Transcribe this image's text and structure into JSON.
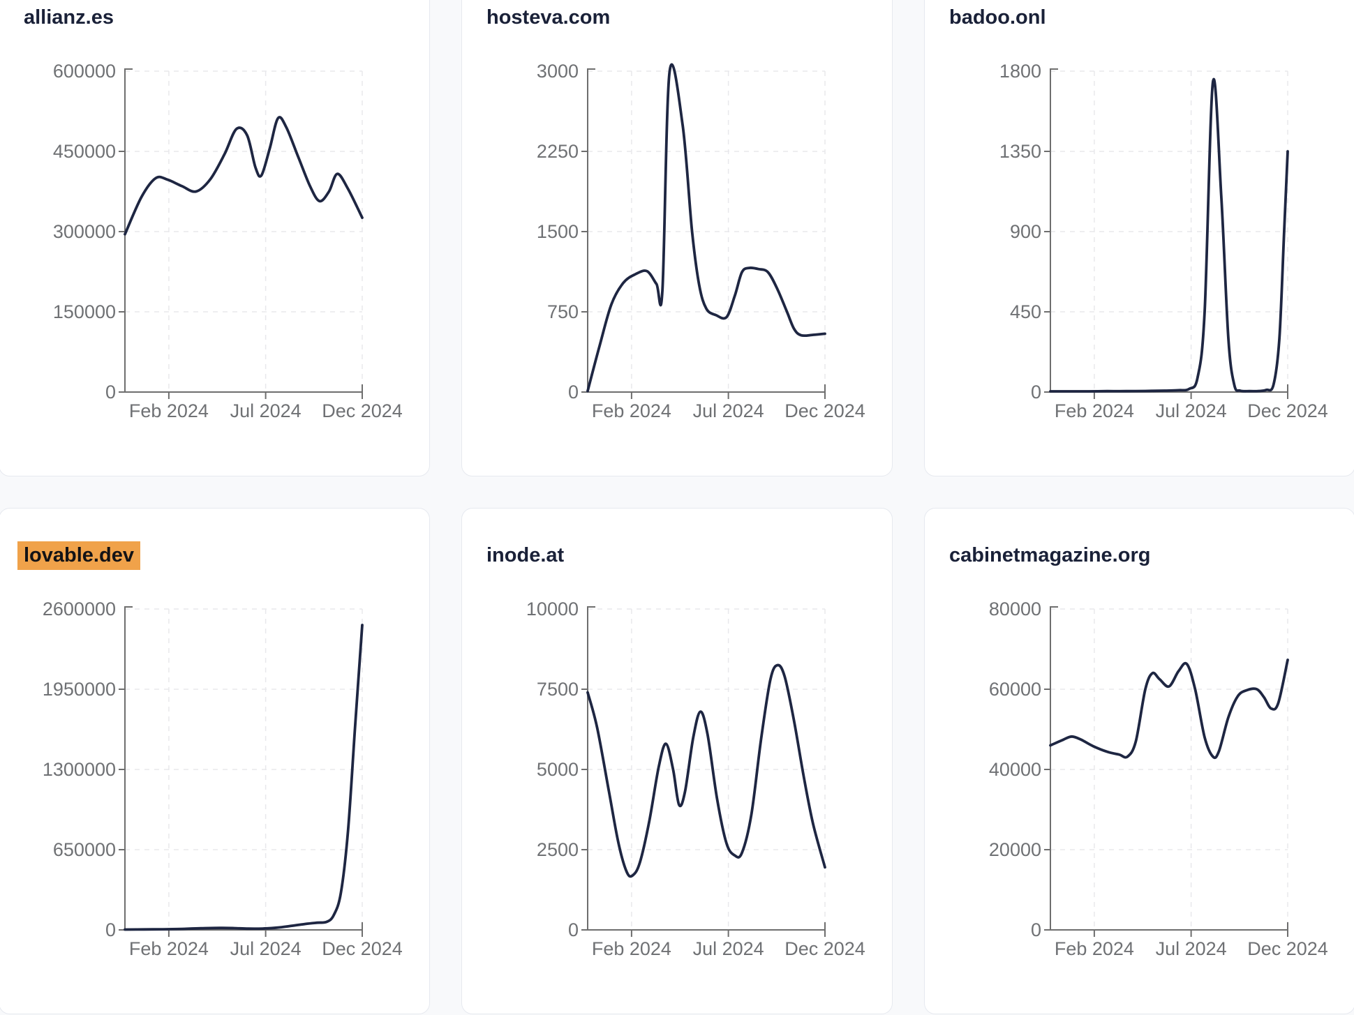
{
  "page": {
    "background_color": "#f8f9fb",
    "card_background": "#ffffff",
    "card_border_color": "#e6e9ef",
    "title_color": "#1a2138",
    "line_color": "#1e2642",
    "axis_color": "#6e6e6e",
    "tick_label_color": "#6f7174",
    "gridline_color": "#e8e8ec",
    "highlight_background": "#f0a24a",
    "highlight_text_color": "#131316"
  },
  "chart_data": [
    {
      "type": "line",
      "title": "allianz.es",
      "highlighted": false,
      "xlabel": "",
      "ylabel": "",
      "ylim": [
        0,
        600000
      ],
      "y_tick_labels": [
        "0",
        "150000",
        "300000",
        "450000",
        "600000"
      ],
      "x_tick_labels": [
        "Feb 2024",
        "Jul 2024",
        "Dec 2024"
      ],
      "x_tick_positions": [
        0.185,
        0.593,
        1.0
      ],
      "grid": true,
      "points": [
        [
          0,
          295000
        ],
        [
          0.07,
          365000
        ],
        [
          0.13,
          400000
        ],
        [
          0.18,
          397000
        ],
        [
          0.24,
          385000
        ],
        [
          0.3,
          375000
        ],
        [
          0.36,
          398000
        ],
        [
          0.42,
          445000
        ],
        [
          0.47,
          492000
        ],
        [
          0.515,
          480000
        ],
        [
          0.55,
          420000
        ],
        [
          0.575,
          405000
        ],
        [
          0.61,
          455000
        ],
        [
          0.645,
          512000
        ],
        [
          0.68,
          495000
        ],
        [
          0.73,
          440000
        ],
        [
          0.78,
          385000
        ],
        [
          0.82,
          357000
        ],
        [
          0.86,
          375000
        ],
        [
          0.895,
          408000
        ],
        [
          0.94,
          380000
        ],
        [
          1.0,
          326000
        ]
      ]
    },
    {
      "type": "line",
      "title": "hosteva.com",
      "highlighted": false,
      "xlabel": "",
      "ylabel": "",
      "ylim": [
        0,
        3000
      ],
      "y_tick_labels": [
        "0",
        "750",
        "1500",
        "2250",
        "3000"
      ],
      "x_tick_labels": [
        "Feb 2024",
        "Jul 2024",
        "Dec 2024"
      ],
      "x_tick_positions": [
        0.185,
        0.593,
        1.0
      ],
      "grid": true,
      "points": [
        [
          0,
          10
        ],
        [
          0.05,
          430
        ],
        [
          0.1,
          820
        ],
        [
          0.15,
          1020
        ],
        [
          0.2,
          1100
        ],
        [
          0.25,
          1130
        ],
        [
          0.29,
          1010
        ],
        [
          0.315,
          950
        ],
        [
          0.345,
          2990
        ],
        [
          0.4,
          2500
        ],
        [
          0.44,
          1500
        ],
        [
          0.47,
          1000
        ],
        [
          0.5,
          780
        ],
        [
          0.54,
          720
        ],
        [
          0.585,
          700
        ],
        [
          0.62,
          900
        ],
        [
          0.65,
          1120
        ],
        [
          0.68,
          1160
        ],
        [
          0.72,
          1150
        ],
        [
          0.76,
          1120
        ],
        [
          0.8,
          960
        ],
        [
          0.84,
          750
        ],
        [
          0.87,
          590
        ],
        [
          0.9,
          530
        ],
        [
          0.95,
          535
        ],
        [
          1.0,
          545
        ]
      ]
    },
    {
      "type": "line",
      "title": "badoo.onl",
      "highlighted": false,
      "xlabel": "",
      "ylabel": "",
      "ylim": [
        0,
        1800
      ],
      "y_tick_labels": [
        "0",
        "450",
        "900",
        "1350",
        "1800"
      ],
      "x_tick_labels": [
        "Feb 2024",
        "Jul 2024",
        "Dec 2024"
      ],
      "x_tick_positions": [
        0.185,
        0.593,
        1.0
      ],
      "grid": true,
      "points": [
        [
          0,
          4
        ],
        [
          0.08,
          4
        ],
        [
          0.16,
          4
        ],
        [
          0.24,
          5
        ],
        [
          0.32,
          5
        ],
        [
          0.4,
          6
        ],
        [
          0.48,
          8
        ],
        [
          0.54,
          10
        ],
        [
          0.585,
          18
        ],
        [
          0.62,
          80
        ],
        [
          0.65,
          450
        ],
        [
          0.685,
          1740
        ],
        [
          0.72,
          1100
        ],
        [
          0.75,
          300
        ],
        [
          0.775,
          40
        ],
        [
          0.8,
          8
        ],
        [
          0.84,
          5
        ],
        [
          0.88,
          6
        ],
        [
          0.91,
          12
        ],
        [
          0.94,
          40
        ],
        [
          0.965,
          300
        ],
        [
          0.985,
          900
        ],
        [
          1.0,
          1350
        ]
      ]
    },
    {
      "type": "line",
      "title": "lovable.dev",
      "highlighted": true,
      "xlabel": "",
      "ylabel": "",
      "ylim": [
        0,
        2600000
      ],
      "y_tick_labels": [
        "0",
        "650000",
        "1300000",
        "1950000",
        "2600000"
      ],
      "x_tick_labels": [
        "Feb 2024",
        "Jul 2024",
        "Dec 2024"
      ],
      "x_tick_positions": [
        0.185,
        0.593,
        1.0
      ],
      "grid": true,
      "points": [
        [
          0,
          3000
        ],
        [
          0.08,
          4000
        ],
        [
          0.16,
          5000
        ],
        [
          0.24,
          8000
        ],
        [
          0.32,
          13000
        ],
        [
          0.4,
          16000
        ],
        [
          0.46,
          14000
        ],
        [
          0.52,
          10000
        ],
        [
          0.58,
          11000
        ],
        [
          0.64,
          18000
        ],
        [
          0.7,
          32000
        ],
        [
          0.76,
          48000
        ],
        [
          0.81,
          58000
        ],
        [
          0.85,
          65000
        ],
        [
          0.88,
          120000
        ],
        [
          0.91,
          300000
        ],
        [
          0.94,
          800000
        ],
        [
          0.97,
          1650000
        ],
        [
          1.0,
          2470000
        ]
      ]
    },
    {
      "type": "line",
      "title": "inode.at",
      "highlighted": false,
      "xlabel": "",
      "ylabel": "",
      "ylim": [
        0,
        10000
      ],
      "y_tick_labels": [
        "0",
        "2500",
        "5000",
        "7500",
        "10000"
      ],
      "x_tick_labels": [
        "Feb 2024",
        "Jul 2024",
        "Dec 2024"
      ],
      "x_tick_positions": [
        0.185,
        0.593,
        1.0
      ],
      "grid": true,
      "points": [
        [
          0,
          7400
        ],
        [
          0.04,
          6300
        ],
        [
          0.09,
          4300
        ],
        [
          0.13,
          2700
        ],
        [
          0.165,
          1800
        ],
        [
          0.19,
          1700
        ],
        [
          0.22,
          2100
        ],
        [
          0.26,
          3400
        ],
        [
          0.3,
          5100
        ],
        [
          0.33,
          5800
        ],
        [
          0.36,
          5000
        ],
        [
          0.385,
          3900
        ],
        [
          0.41,
          4300
        ],
        [
          0.445,
          6000
        ],
        [
          0.475,
          6800
        ],
        [
          0.505,
          6100
        ],
        [
          0.545,
          4100
        ],
        [
          0.585,
          2700
        ],
        [
          0.62,
          2320
        ],
        [
          0.65,
          2400
        ],
        [
          0.69,
          3600
        ],
        [
          0.73,
          5900
        ],
        [
          0.77,
          7800
        ],
        [
          0.8,
          8250
        ],
        [
          0.83,
          7900
        ],
        [
          0.87,
          6500
        ],
        [
          0.91,
          4800
        ],
        [
          0.95,
          3300
        ],
        [
          1.0,
          1950
        ]
      ]
    },
    {
      "type": "line",
      "title": "cabinetmagazine.org",
      "highlighted": false,
      "xlabel": "",
      "ylabel": "",
      "ylim": [
        0,
        80000
      ],
      "y_tick_labels": [
        "0",
        "20000",
        "40000",
        "60000",
        "80000"
      ],
      "x_tick_labels": [
        "Feb 2024",
        "Jul 2024",
        "Dec 2024"
      ],
      "x_tick_positions": [
        0.185,
        0.593,
        1.0
      ],
      "grid": true,
      "points": [
        [
          0,
          46000
        ],
        [
          0.05,
          47300
        ],
        [
          0.09,
          48200
        ],
        [
          0.13,
          47400
        ],
        [
          0.18,
          45800
        ],
        [
          0.24,
          44400
        ],
        [
          0.29,
          43700
        ],
        [
          0.325,
          43200
        ],
        [
          0.36,
          47000
        ],
        [
          0.4,
          60000
        ],
        [
          0.43,
          64000
        ],
        [
          0.46,
          62500
        ],
        [
          0.5,
          60700
        ],
        [
          0.54,
          64500
        ],
        [
          0.575,
          66300
        ],
        [
          0.61,
          60000
        ],
        [
          0.65,
          48000
        ],
        [
          0.685,
          43200
        ],
        [
          0.71,
          44500
        ],
        [
          0.75,
          53000
        ],
        [
          0.79,
          58300
        ],
        [
          0.83,
          59800
        ],
        [
          0.87,
          60000
        ],
        [
          0.9,
          58000
        ],
        [
          0.93,
          55200
        ],
        [
          0.96,
          56500
        ],
        [
          1.0,
          67300
        ]
      ]
    }
  ]
}
